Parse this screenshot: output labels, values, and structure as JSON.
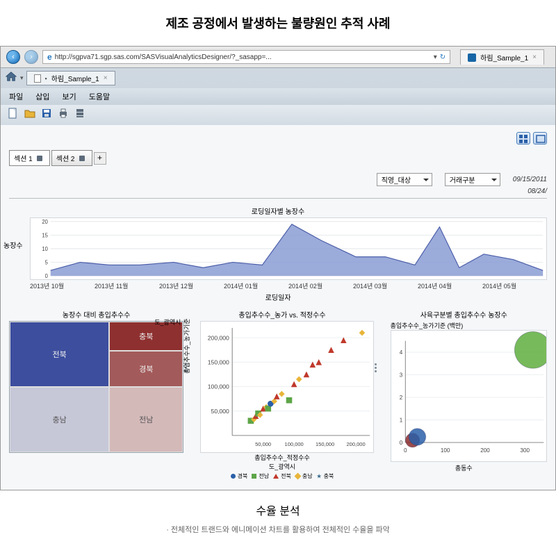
{
  "page_title": "제조 공정에서 발생하는 불량원인 추적 사례",
  "browser": {
    "url": "http://sgpva71.sgp.sas.com/SASVisualAnalyticsDesigner/?_sasapp=...",
    "refresh_glyph": "↻",
    "tab_label": "하림_Sample_1",
    "tab_close": "×",
    "ie_glyph": "e"
  },
  "app": {
    "doc_tab_label": "하림_Sample_1",
    "doc_tab_close": "×",
    "menu": {
      "file": "파일",
      "insert": "삽입",
      "view": "보기",
      "help": "도움말"
    }
  },
  "sections": {
    "tab1": "섹션 1",
    "tab2": "섹션 2",
    "add": "+"
  },
  "filters": {
    "dd1": "직영_대상",
    "dd2": "거래구분",
    "date1": "09/15/2011",
    "date2": "08/24/"
  },
  "area_chart": {
    "title": "로딩일자별 농장수",
    "ylabel": "농장수",
    "yticks": [
      "20",
      "15",
      "10",
      "5",
      "0"
    ],
    "xticks": [
      "2013년 10월",
      "2013년 11월",
      "2013년 12월",
      "2014년 01월",
      "2014년 02월",
      "2014년 03월",
      "2014년 04월",
      "2014년 05월"
    ],
    "xaxis_title": "로딩일자",
    "fill_color": "#8a9cd4",
    "stroke_color": "#4a5da8",
    "background": "#ffffff",
    "path_points": [
      [
        0,
        2
      ],
      [
        6,
        5
      ],
      [
        12,
        4
      ],
      [
        18,
        4
      ],
      [
        25,
        5
      ],
      [
        31,
        3
      ],
      [
        37,
        5
      ],
      [
        43,
        4
      ],
      [
        49,
        19
      ],
      [
        55,
        13
      ],
      [
        62,
        7
      ],
      [
        68,
        7
      ],
      [
        74,
        4
      ],
      [
        79,
        18
      ],
      [
        83,
        3
      ],
      [
        88,
        8
      ],
      [
        94,
        6
      ],
      [
        100,
        2
      ]
    ],
    "ymax": 20
  },
  "treemap": {
    "title": "농장수 대비 총입추수수",
    "corner_label": "도_광역시",
    "cells": [
      {
        "label": "전북",
        "color": "#3d4e9e"
      },
      {
        "label": "충북",
        "color": "#8f3030"
      },
      {
        "label": "경북",
        "color": "#a35a5a"
      },
      {
        "label": "충남",
        "color": "#c6c8d8"
      },
      {
        "label": "전남",
        "color": "#d4b9b9"
      }
    ]
  },
  "scatter": {
    "title": "총입추수수_농가 vs. 적정수수",
    "ylabel": "총입추수수_농가기준",
    "yticks": [
      {
        "v": 200000,
        "label": "200,000"
      },
      {
        "v": 150000,
        "label": "150,000"
      },
      {
        "v": 100000,
        "label": "100,000"
      },
      {
        "v": 50000,
        "label": "50,000"
      }
    ],
    "xticks": [
      {
        "v": 50000,
        "label": "50,000"
      },
      {
        "v": 100000,
        "label": "100,000"
      },
      {
        "v": 150000,
        "label": "150,000"
      },
      {
        "v": 200000,
        "label": "200,000"
      }
    ],
    "xaxis_title": "총입추수수_적정수수",
    "xmax": 220000,
    "ymax": 220000,
    "legend_title": "도_광역시",
    "series_colors": {
      "경북": "#2a5fa8",
      "전남": "#5ea548",
      "전북": "#c0392b",
      "충남": "#e8b53a",
      "충북": "#3a6b8c"
    },
    "legend_items": [
      "경북",
      "전남",
      "전북",
      "충남",
      "충북"
    ],
    "legend_shapes": {
      "경북": "circle",
      "전남": "square",
      "전북": "triangle",
      "충남": "diamond",
      "충북": "star"
    },
    "points": [
      {
        "x": 30000,
        "y": 30000,
        "c": "#5ea548",
        "s": "square"
      },
      {
        "x": 35000,
        "y": 33000,
        "c": "#e8b53a",
        "s": "diamond"
      },
      {
        "x": 38000,
        "y": 40000,
        "c": "#c0392b",
        "s": "triangle"
      },
      {
        "x": 42000,
        "y": 45000,
        "c": "#5ea548",
        "s": "square"
      },
      {
        "x": 45000,
        "y": 42000,
        "c": "#e8b53a",
        "s": "diamond"
      },
      {
        "x": 50000,
        "y": 55000,
        "c": "#c0392b",
        "s": "triangle"
      },
      {
        "x": 55000,
        "y": 58000,
        "c": "#e8b53a",
        "s": "diamond"
      },
      {
        "x": 58000,
        "y": 55000,
        "c": "#5ea548",
        "s": "square"
      },
      {
        "x": 62000,
        "y": 65000,
        "c": "#2a5fa8",
        "s": "circle"
      },
      {
        "x": 68000,
        "y": 70000,
        "c": "#e8b53a",
        "s": "diamond"
      },
      {
        "x": 72000,
        "y": 80000,
        "c": "#c0392b",
        "s": "triangle"
      },
      {
        "x": 80000,
        "y": 85000,
        "c": "#e8b53a",
        "s": "diamond"
      },
      {
        "x": 92000,
        "y": 72000,
        "c": "#5ea548",
        "s": "square"
      },
      {
        "x": 100000,
        "y": 105000,
        "c": "#c0392b",
        "s": "triangle"
      },
      {
        "x": 108000,
        "y": 115000,
        "c": "#e8b53a",
        "s": "diamond"
      },
      {
        "x": 120000,
        "y": 125000,
        "c": "#c0392b",
        "s": "triangle"
      },
      {
        "x": 130000,
        "y": 145000,
        "c": "#c0392b",
        "s": "triangle"
      },
      {
        "x": 140000,
        "y": 150000,
        "c": "#c0392b",
        "s": "triangle"
      },
      {
        "x": 160000,
        "y": 175000,
        "c": "#c0392b",
        "s": "triangle"
      },
      {
        "x": 180000,
        "y": 195000,
        "c": "#c0392b",
        "s": "triangle"
      },
      {
        "x": 210000,
        "y": 210000,
        "c": "#e8b53a",
        "s": "diamond"
      }
    ]
  },
  "bubble": {
    "title": "사육구분별 총입추수수 농장수",
    "ylabel": "총입추수수_농가기준 (백만)",
    "yticks": [
      {
        "v": 4,
        "label": "4"
      },
      {
        "v": 3,
        "label": "3"
      },
      {
        "v": 2,
        "label": "2"
      },
      {
        "v": 1,
        "label": "1"
      },
      {
        "v": 0,
        "label": "0"
      }
    ],
    "xticks": [
      {
        "v": 0,
        "label": "0"
      },
      {
        "v": 100,
        "label": "100"
      },
      {
        "v": 200,
        "label": "200"
      },
      {
        "v": 300,
        "label": "300"
      }
    ],
    "xaxis_title": "총동수",
    "ymax": 4.5,
    "xmax": 340,
    "points": [
      {
        "x": 18,
        "y": 0.1,
        "r": 10,
        "c": "#8b2c2c"
      },
      {
        "x": 30,
        "y": 0.25,
        "r": 12,
        "c": "#2a5fa8"
      },
      {
        "x": 320,
        "y": 4.1,
        "r": 26,
        "c": "#5fae3e"
      }
    ]
  },
  "caption": "수율 분석",
  "sub_caption": "· 전체적인 트랜드와 에니메이션 차트를 활용하여 전체적인 수율을 파악"
}
